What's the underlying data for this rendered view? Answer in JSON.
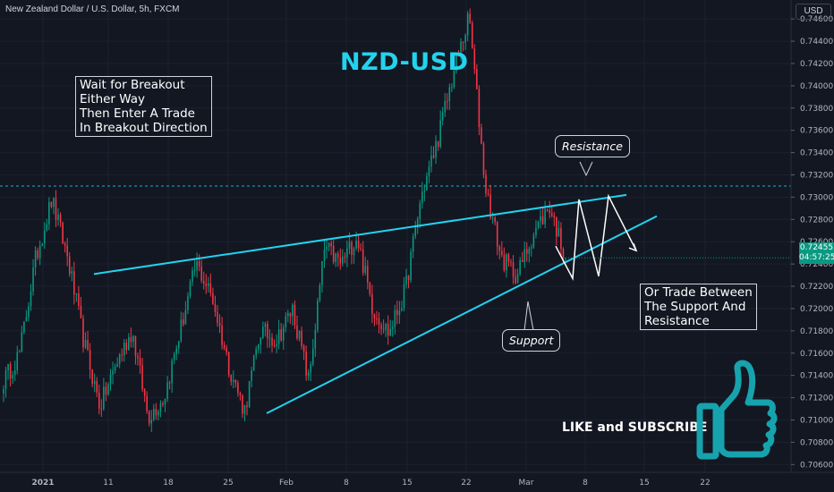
{
  "header": {
    "title": "New Zealand Dollar / U.S. Dollar, 5h, FXCM",
    "currency": "USD",
    "currency_icon": "dollar-circle-icon"
  },
  "annotations": {
    "chart_title": "NZD-USD",
    "note_left": "Wait for Breakout\nEither Way\nThen Enter A Trade\nIn Breakout Direction",
    "note_right": "Or Trade Between\nThe Support And\nResistance",
    "resistance_label": "Resistance",
    "support_label": "Support",
    "cta": "LIKE and SUBSCRIBE",
    "cta_icon": "thumbs-up-icon"
  },
  "price_tag": {
    "price": "0.72455",
    "countdown": "04:57:25",
    "color": "#089981"
  },
  "colors": {
    "up": "#089981",
    "down": "#f23645",
    "trendline": "#22d3ee",
    "background": "#131722"
  },
  "chart_data": {
    "type": "candlestick",
    "x_axis_labels": [
      "2021",
      "11",
      "18",
      "25",
      "Feb",
      "8",
      "15",
      "22",
      "Mar",
      "8",
      "15",
      "22"
    ],
    "y_axis_labels": [
      "0.74600",
      "0.74400",
      "0.74200",
      "0.74000",
      "0.73800",
      "0.73600",
      "0.73400",
      "0.73200",
      "0.73000",
      "0.72800",
      "0.72600",
      "0.72400",
      "0.72200",
      "0.72000",
      "0.71800",
      "0.71600",
      "0.71400",
      "0.71200",
      "0.71000",
      "0.70800",
      "0.70600"
    ],
    "ylim": [
      0.7053,
      0.7477
    ],
    "horizontal_level": 0.731,
    "resistance_line": [
      [
        0.7231,
        0.7291
      ],
      [
        0.7302,
        0.7308
      ]
    ],
    "support_line": [
      [
        0.7106,
        0.7228
      ],
      [
        0.7283,
        0.7251
      ]
    ],
    "projection_zigzag": [
      0.7256,
      0.7227,
      0.7298,
      0.7229,
      0.7301,
      0.7252
    ],
    "last_price": 0.72455,
    "path_keypoints": [
      0.7135,
      0.716,
      0.7245,
      0.7298,
      0.7245,
      0.717,
      0.7112,
      0.715,
      0.718,
      0.7103,
      0.712,
      0.718,
      0.724,
      0.721,
      0.715,
      0.7108,
      0.718,
      0.7172,
      0.72,
      0.7135,
      0.7255,
      0.724,
      0.7265,
      0.72,
      0.7178,
      0.7215,
      0.73,
      0.735,
      0.741,
      0.7462,
      0.731,
      0.7245,
      0.723,
      0.7268,
      0.7292,
      0.7246
    ]
  }
}
